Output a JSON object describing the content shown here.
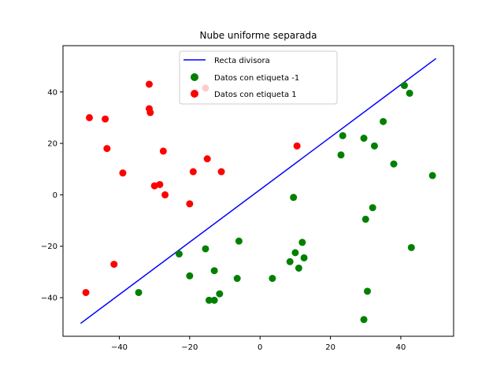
{
  "chart_data": {
    "type": "scatter",
    "title": "Nube uniforme separada",
    "xlabel": "",
    "ylabel": "",
    "xlim": [
      -56,
      55
    ],
    "ylim": [
      -55,
      58
    ],
    "xticks": [
      -40,
      -20,
      0,
      20,
      40
    ],
    "yticks": [
      -40,
      -20,
      0,
      20,
      40
    ],
    "grid": false,
    "legend_position": "top-center",
    "line": {
      "name": "Recta divisora",
      "color": "#0000ff",
      "x": [
        -51,
        50
      ],
      "y": [
        -50,
        53
      ]
    },
    "series": [
      {
        "name": "Datos con etiqueta -1",
        "color": "#008000",
        "points": [
          [
            -34.5,
            -38
          ],
          [
            -23,
            -23
          ],
          [
            -20,
            -31.5
          ],
          [
            -15.5,
            -21
          ],
          [
            -14.5,
            -41
          ],
          [
            -13,
            -41
          ],
          [
            -13,
            -29.5
          ],
          [
            -11.5,
            -38.5
          ],
          [
            -6.5,
            -32.5
          ],
          [
            -6,
            -18
          ],
          [
            3.5,
            -32.5
          ],
          [
            8.5,
            -26
          ],
          [
            9.5,
            -1
          ],
          [
            10,
            -22.5
          ],
          [
            11,
            -28.5
          ],
          [
            12,
            -18.5
          ],
          [
            12.5,
            -24.5
          ],
          [
            23,
            15.5
          ],
          [
            23.5,
            23
          ],
          [
            29.5,
            22
          ],
          [
            29.5,
            -48.5
          ],
          [
            30,
            -9.5
          ],
          [
            30.5,
            -37.5
          ],
          [
            32,
            -5
          ],
          [
            32.5,
            19
          ],
          [
            35,
            28.5
          ],
          [
            38,
            12
          ],
          [
            41,
            42.5
          ],
          [
            42.5,
            39.5
          ],
          [
            43,
            -20.5
          ],
          [
            49,
            7.5
          ]
        ]
      },
      {
        "name": "Datos con etiqueta 1",
        "color": "#ff0000",
        "points": [
          [
            -49.5,
            -38
          ],
          [
            -48.5,
            30
          ],
          [
            -44,
            29.5
          ],
          [
            -43.5,
            18
          ],
          [
            -41.5,
            -27
          ],
          [
            -39,
            8.5
          ],
          [
            -31.5,
            43
          ],
          [
            -31.5,
            33.5
          ],
          [
            -31.2,
            32
          ],
          [
            -30,
            3.5
          ],
          [
            -28.5,
            4
          ],
          [
            -27.5,
            17
          ],
          [
            -27,
            0
          ],
          [
            -20,
            -3.5
          ],
          [
            -19,
            9
          ],
          [
            -15.5,
            41.5
          ],
          [
            -15,
            14
          ],
          [
            -11,
            9
          ],
          [
            10.5,
            19
          ]
        ]
      }
    ]
  }
}
